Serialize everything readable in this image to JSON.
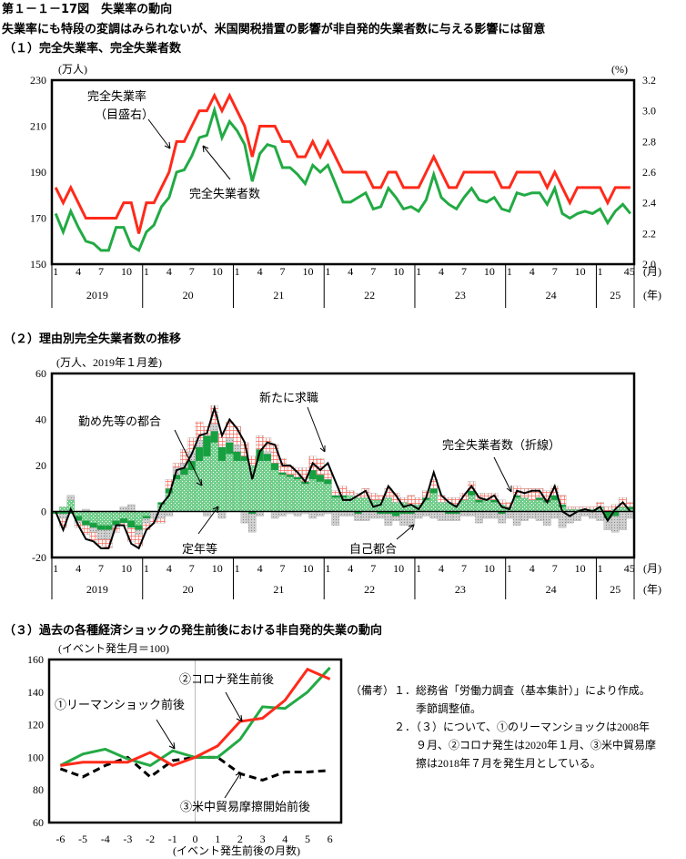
{
  "figure": {
    "title": "第１－１－17図　失業率の動向",
    "subtitle": "失業率にも特段の変調はみられないが、米国関税措置の影響が非自発的失業者数に与える影響には留意",
    "colors": {
      "red": "#ff2a1a",
      "green": "#22aa44",
      "black": "#000000",
      "gray": "#bdbdbd",
      "dark_green": "#109a3a"
    }
  },
  "months_axis": {
    "month_ticks": [
      "1",
      "4",
      "7",
      "10"
    ],
    "last_year_ticks": [
      "1",
      "45"
    ],
    "years": [
      "2019",
      "20",
      "21",
      "22",
      "23",
      "24",
      "25"
    ],
    "month_unit": "(月)",
    "year_unit": "(年)"
  },
  "chart_data": [
    {
      "type": "line",
      "title": "（１）完全失業率、完全失業者数",
      "ylabel_left": "(万人)",
      "ylabel_right": "(%)",
      "ylim_left": [
        150,
        230
      ],
      "yticks_left": [
        "150",
        "170",
        "190",
        "210",
        "230"
      ],
      "ylim_right": [
        2.0,
        3.2
      ],
      "yticks_right": [
        "2.0",
        "2.2",
        "2.4",
        "2.6",
        "2.8",
        "3.0",
        "3.2"
      ],
      "x_start": "2019-01",
      "x_end": "2025-05",
      "series": [
        {
          "name": "完全失業率",
          "name_sub": "（目盛右）",
          "axis": "right",
          "color": "#ff2a1a",
          "values": [
            2.5,
            2.4,
            2.5,
            2.4,
            2.3,
            2.3,
            2.3,
            2.3,
            2.3,
            2.4,
            2.4,
            2.2,
            2.4,
            2.4,
            2.5,
            2.6,
            2.8,
            2.8,
            2.9,
            3.0,
            3.0,
            3.1,
            3.0,
            3.1,
            3.0,
            2.9,
            2.7,
            2.9,
            2.9,
            2.9,
            2.8,
            2.8,
            2.7,
            2.7,
            2.8,
            2.7,
            2.8,
            2.7,
            2.6,
            2.6,
            2.6,
            2.6,
            2.5,
            2.5,
            2.6,
            2.6,
            2.5,
            2.5,
            2.5,
            2.6,
            2.7,
            2.6,
            2.5,
            2.5,
            2.6,
            2.6,
            2.6,
            2.6,
            2.6,
            2.5,
            2.5,
            2.6,
            2.6,
            2.6,
            2.6,
            2.5,
            2.6,
            2.5,
            2.4,
            2.5,
            2.5,
            2.5,
            2.5,
            2.4,
            2.5,
            2.5,
            2.5
          ]
        },
        {
          "name": "完全失業者数",
          "axis": "left",
          "color": "#22aa44",
          "values": [
            172,
            164,
            173,
            166,
            160,
            159,
            156,
            156,
            166,
            166,
            158,
            156,
            164,
            167,
            175,
            179,
            190,
            191,
            197,
            205,
            206,
            217,
            205,
            212,
            208,
            202,
            186,
            198,
            202,
            201,
            192,
            192,
            189,
            185,
            193,
            190,
            193,
            185,
            177,
            177,
            179,
            181,
            174,
            175,
            183,
            179,
            174,
            175,
            173,
            178,
            189,
            179,
            176,
            174,
            179,
            183,
            178,
            177,
            179,
            174,
            173,
            181,
            180,
            181,
            181,
            176,
            183,
            172,
            170,
            172,
            173,
            172,
            174,
            168,
            173,
            176,
            172
          ]
        }
      ]
    },
    {
      "type": "bar",
      "stacked": true,
      "title": "（２）理由別完全失業者数の推移",
      "ylabel": "(万人、2019年１月差)",
      "ylim": [
        -20,
        60
      ],
      "yticks": [
        "-20",
        "0",
        "20",
        "40",
        "60"
      ],
      "series": [
        {
          "name": "勤め先等の都合",
          "values": [
            0,
            2,
            5,
            -2,
            -4,
            -5,
            -6,
            -6,
            -4,
            -3,
            -4,
            -6,
            -2,
            0,
            3,
            8,
            14,
            16,
            18,
            22,
            24,
            30,
            22,
            25,
            22,
            22,
            20,
            22,
            22,
            18,
            16,
            15,
            14,
            12,
            14,
            13,
            12,
            6,
            6,
            7,
            6,
            6,
            5,
            5,
            6,
            4,
            4,
            3,
            3,
            5,
            8,
            4,
            4,
            3,
            5,
            7,
            4,
            5,
            4,
            3,
            2,
            6,
            6,
            5,
            5,
            4,
            5,
            2,
            1,
            1,
            1,
            1,
            2,
            0,
            1,
            2,
            1
          ]
        },
        {
          "name": "定年等",
          "values": [
            -1,
            -1,
            -1,
            -2,
            -2,
            -2,
            -2,
            -2,
            -2,
            -2,
            -3,
            -2,
            -1,
            0,
            1,
            2,
            2,
            3,
            4,
            6,
            9,
            5,
            6,
            5,
            4,
            2,
            -1,
            5,
            3,
            3,
            1,
            1,
            1,
            1,
            4,
            3,
            2,
            1,
            1,
            0,
            -1,
            0,
            0,
            -1,
            -1,
            -2,
            -1,
            -1,
            0,
            1,
            2,
            0,
            -1,
            -1,
            0,
            2,
            1,
            0,
            1,
            -1,
            0,
            1,
            0,
            0,
            1,
            1,
            2,
            1,
            0,
            0,
            0,
            0,
            0,
            -3,
            -2,
            0,
            1
          ]
        },
        {
          "name": "自己都合",
          "values": [
            0,
            -2,
            2,
            -1,
            1,
            -2,
            -4,
            -4,
            -1,
            2,
            3,
            -2,
            -2,
            -3,
            -3,
            -2,
            3,
            2,
            4,
            3,
            -2,
            3,
            -3,
            2,
            3,
            -5,
            -8,
            -2,
            1,
            -3,
            -2,
            -1,
            -2,
            -1,
            -3,
            -2,
            -1,
            -6,
            -2,
            -2,
            -3,
            -4,
            -3,
            -2,
            -5,
            -2,
            -5,
            -5,
            -3,
            -2,
            -3,
            -4,
            -3,
            -3,
            -2,
            -2,
            -5,
            -3,
            -3,
            -4,
            -3,
            -6,
            -4,
            -3,
            -4,
            -6,
            -3,
            -7,
            -5,
            -4,
            -2,
            -3,
            -4,
            -5,
            -7,
            -8,
            -3
          ]
        },
        {
          "name": "新たに求職",
          "values": [
            0,
            -4,
            0,
            -2,
            -4,
            -4,
            -3,
            -4,
            -2,
            -1,
            -6,
            -5,
            -3,
            -2,
            -2,
            4,
            2,
            6,
            6,
            8,
            4,
            8,
            6,
            7,
            8,
            6,
            4,
            6,
            6,
            8,
            6,
            4,
            4,
            6,
            6,
            7,
            4,
            2,
            4,
            2,
            2,
            4,
            3,
            2,
            4,
            4,
            2,
            4,
            3,
            3,
            4,
            3,
            2,
            3,
            3,
            4,
            3,
            3,
            3,
            2,
            2,
            4,
            4,
            5,
            4,
            4,
            4,
            4,
            1,
            1,
            1,
            1,
            2,
            2,
            2,
            4,
            2
          ]
        },
        {
          "name": "完全失業者数（折線）",
          "type": "line",
          "values": [
            0,
            -8,
            1,
            -6,
            -12,
            -13,
            -16,
            -16,
            -6,
            -6,
            -14,
            -16,
            -8,
            -5,
            3,
            7,
            18,
            19,
            25,
            33,
            34,
            45,
            33,
            40,
            36,
            30,
            14,
            26,
            30,
            29,
            20,
            20,
            17,
            13,
            21,
            18,
            21,
            13,
            5,
            5,
            7,
            9,
            2,
            3,
            11,
            7,
            2,
            3,
            1,
            6,
            17,
            7,
            4,
            2,
            7,
            11,
            6,
            5,
            7,
            2,
            1,
            9,
            8,
            9,
            9,
            4,
            11,
            0,
            -2,
            0,
            1,
            0,
            2,
            -4,
            1,
            4,
            0
          ]
        }
      ]
    },
    {
      "type": "line",
      "title": "（３）過去の各種経済ショックの発生前後における非自発的失業の動向",
      "ylabel": "(イベント発生月＝100)",
      "xlabel": "(イベント発生前後の月数)",
      "x": [
        -6,
        -5,
        -4,
        -3,
        -2,
        -1,
        0,
        1,
        2,
        3,
        4,
        5,
        6
      ],
      "xticks": [
        "-6",
        "-5",
        "-4",
        "-3",
        "-2",
        "-1",
        "0",
        "1",
        "2",
        "3",
        "4",
        "5",
        "6"
      ],
      "ylim": [
        60,
        160
      ],
      "yticks": [
        "60",
        "80",
        "100",
        "120",
        "140",
        "160"
      ],
      "series": [
        {
          "name": "①リーマンショック前後",
          "color": "#22aa44",
          "dash": false,
          "values": [
            95,
            102,
            105,
            99,
            95,
            104,
            100,
            100,
            111,
            131,
            130,
            140,
            155
          ]
        },
        {
          "name": "②コロナ発生前後",
          "color": "#ff2a1a",
          "dash": false,
          "values": [
            95,
            97,
            97,
            97,
            103,
            95,
            100,
            107,
            122,
            124,
            135,
            154,
            148
          ]
        },
        {
          "name": "③米中貿易摩擦開始前後",
          "color": "#000000",
          "dash": true,
          "values": [
            93,
            88,
            95,
            100,
            88,
            98,
            100,
            100,
            90,
            86,
            91,
            91,
            92
          ]
        }
      ]
    }
  ],
  "notes": {
    "label": "（備考）",
    "lines": [
      "１．総務省「労働力調査（基本集計）」により作成。",
      "季節調整値。",
      "２．（３）について、①のリーマンショックは2008年",
      "９月、②コロナ発生は2020年１月、③米中貿易摩",
      "擦は2018年７月を発生月としている。"
    ]
  }
}
